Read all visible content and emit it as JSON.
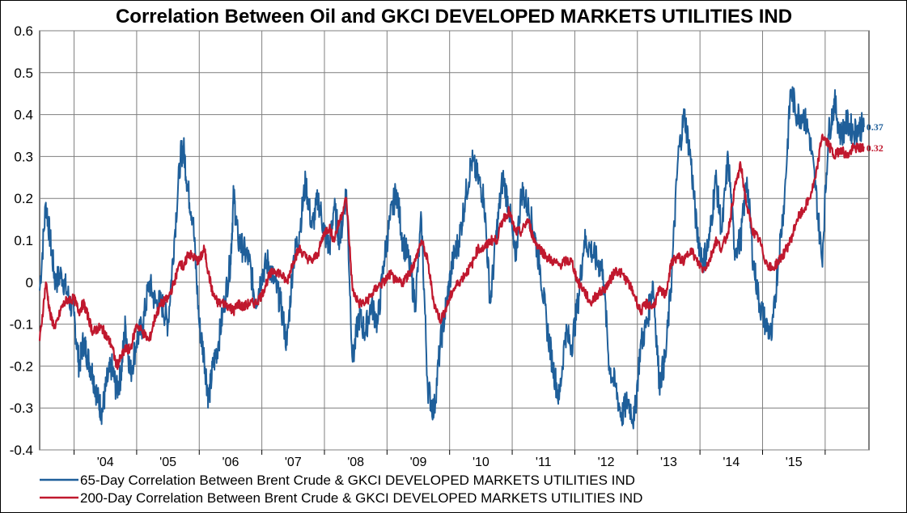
{
  "chart_data": {
    "type": "line",
    "title": "Correlation Between Oil and GKCI DEVELOPED MARKETS UTILITIES IND",
    "xlabel": "",
    "ylabel": "",
    "ylim": [
      -0.4,
      0.6
    ],
    "y_ticks": [
      "0.6",
      "0.5",
      "0.4",
      "0.3",
      "0.2",
      "0.1",
      "0",
      "-0.1",
      "-0.2",
      "-0.3",
      "-0.4"
    ],
    "x_ticks": [
      "'04",
      "'05",
      "'06",
      "'07",
      "'08",
      "'09",
      "'10",
      "'11",
      "'12",
      "'13",
      "'14",
      "'15"
    ],
    "grid": true,
    "legend_position": "bottom",
    "series": [
      {
        "name": "65-Day Correlation Between Brent Crude & GKCI DEVELOPED MARKETS UTILITIES IND",
        "color": "#1f5f9a",
        "end_label": "0.37",
        "x": [
          2003.45,
          2003.55,
          2003.62,
          2003.7,
          2003.8,
          2003.9,
          2004.0,
          2004.08,
          2004.15,
          2004.22,
          2004.3,
          2004.38,
          2004.45,
          2004.52,
          2004.6,
          2004.68,
          2004.75,
          2004.82,
          2004.9,
          2005.0,
          2005.1,
          2005.2,
          2005.3,
          2005.4,
          2005.5,
          2005.6,
          2005.7,
          2005.75,
          2005.82,
          2005.9,
          2006.0,
          2006.08,
          2006.15,
          2006.22,
          2006.3,
          2006.4,
          2006.5,
          2006.55,
          2006.62,
          2006.7,
          2006.8,
          2006.9,
          2007.0,
          2007.1,
          2007.2,
          2007.3,
          2007.4,
          2007.5,
          2007.6,
          2007.7,
          2007.8,
          2007.9,
          2008.0,
          2008.08,
          2008.15,
          2008.25,
          2008.35,
          2008.45,
          2008.55,
          2008.65,
          2008.75,
          2008.85,
          2008.95,
          2009.05,
          2009.15,
          2009.25,
          2009.35,
          2009.45,
          2009.55,
          2009.65,
          2009.75,
          2009.85,
          2009.95,
          2010.05,
          2010.15,
          2010.25,
          2010.35,
          2010.45,
          2010.55,
          2010.65,
          2010.75,
          2010.85,
          2010.95,
          2011.05,
          2011.15,
          2011.25,
          2011.35,
          2011.45,
          2011.55,
          2011.65,
          2011.75,
          2011.85,
          2011.95,
          2012.05,
          2012.15,
          2012.25,
          2012.35,
          2012.45,
          2012.55,
          2012.65,
          2012.75,
          2012.85,
          2012.95,
          2013.05,
          2013.15,
          2013.25,
          2013.35,
          2013.45,
          2013.55,
          2013.65,
          2013.75,
          2013.85,
          2013.95,
          2014.05,
          2014.15,
          2014.25,
          2014.35,
          2014.45,
          2014.55,
          2014.65,
          2014.75,
          2014.85,
          2014.95,
          2015.05,
          2015.15,
          2015.25,
          2015.35,
          2015.45,
          2015.55,
          2015.65,
          2015.75,
          2015.85,
          2015.95,
          2016.05,
          2016.15,
          2016.25,
          2016.35,
          2016.45,
          2016.55,
          2016.62
        ],
        "y": [
          -0.02,
          0.19,
          0.1,
          0.0,
          0.02,
          -0.03,
          -0.08,
          -0.2,
          -0.14,
          -0.18,
          -0.22,
          -0.28,
          -0.31,
          -0.24,
          -0.2,
          -0.26,
          -0.22,
          -0.1,
          -0.22,
          -0.14,
          -0.1,
          0.0,
          -0.05,
          -0.05,
          -0.1,
          0.1,
          0.3,
          0.32,
          0.22,
          0.15,
          -0.1,
          -0.18,
          -0.28,
          -0.2,
          -0.15,
          -0.05,
          0.05,
          0.21,
          0.1,
          0.08,
          0.05,
          -0.05,
          0.02,
          0.05,
          0.0,
          -0.05,
          -0.15,
          0.05,
          0.12,
          0.24,
          0.13,
          0.2,
          0.12,
          0.08,
          0.18,
          0.1,
          0.22,
          -0.19,
          -0.08,
          -0.12,
          -0.05,
          -0.1,
          0.05,
          0.15,
          0.22,
          0.1,
          0.05,
          -0.05,
          0.15,
          -0.25,
          -0.31,
          -0.15,
          -0.05,
          0.05,
          0.1,
          0.2,
          0.29,
          0.25,
          0.2,
          -0.05,
          0.12,
          0.25,
          0.18,
          0.05,
          0.22,
          0.18,
          0.12,
          0.03,
          -0.1,
          -0.2,
          -0.28,
          -0.12,
          -0.15,
          -0.05,
          0.1,
          0.08,
          0.05,
          0.03,
          -0.2,
          -0.25,
          -0.32,
          -0.28,
          -0.33,
          -0.15,
          -0.1,
          0.0,
          -0.24,
          -0.18,
          0.02,
          0.3,
          0.4,
          0.3,
          0.12,
          0.05,
          0.1,
          0.25,
          0.12,
          0.3,
          0.08,
          0.1,
          0.25,
          0.05,
          -0.05,
          -0.1,
          -0.13,
          0.05,
          0.2,
          0.46,
          0.4,
          0.4,
          0.35,
          0.22,
          0.05,
          0.35,
          0.43,
          0.35,
          0.38,
          0.36,
          0.37,
          0.37
        ],
        "last_value": 0.37
      },
      {
        "name": "200-Day Correlation Between Brent Crude & GKCI DEVELOPED MARKETS UTILITIES IND",
        "color": "#c0182e",
        "end_label": "0.32",
        "x": [
          2003.45,
          2003.55,
          2003.62,
          2003.7,
          2003.8,
          2003.9,
          2004.0,
          2004.08,
          2004.15,
          2004.22,
          2004.3,
          2004.38,
          2004.45,
          2004.52,
          2004.6,
          2004.68,
          2004.75,
          2004.82,
          2004.9,
          2005.0,
          2005.1,
          2005.2,
          2005.3,
          2005.4,
          2005.5,
          2005.6,
          2005.7,
          2005.75,
          2005.82,
          2005.9,
          2006.0,
          2006.08,
          2006.15,
          2006.22,
          2006.3,
          2006.4,
          2006.5,
          2006.55,
          2006.62,
          2006.7,
          2006.8,
          2006.9,
          2007.0,
          2007.1,
          2007.2,
          2007.3,
          2007.4,
          2007.5,
          2007.6,
          2007.7,
          2007.8,
          2007.9,
          2008.0,
          2008.08,
          2008.15,
          2008.25,
          2008.35,
          2008.45,
          2008.55,
          2008.65,
          2008.75,
          2008.85,
          2008.95,
          2009.05,
          2009.15,
          2009.25,
          2009.35,
          2009.45,
          2009.55,
          2009.65,
          2009.75,
          2009.85,
          2009.95,
          2010.05,
          2010.15,
          2010.25,
          2010.35,
          2010.45,
          2010.55,
          2010.65,
          2010.75,
          2010.85,
          2010.95,
          2011.05,
          2011.15,
          2011.25,
          2011.35,
          2011.45,
          2011.55,
          2011.65,
          2011.75,
          2011.85,
          2011.95,
          2012.05,
          2012.15,
          2012.25,
          2012.35,
          2012.45,
          2012.55,
          2012.65,
          2012.75,
          2012.85,
          2012.95,
          2013.05,
          2013.15,
          2013.25,
          2013.35,
          2013.45,
          2013.55,
          2013.65,
          2013.75,
          2013.85,
          2013.95,
          2014.05,
          2014.15,
          2014.25,
          2014.35,
          2014.45,
          2014.55,
          2014.65,
          2014.75,
          2014.85,
          2014.95,
          2015.05,
          2015.15,
          2015.25,
          2015.35,
          2015.45,
          2015.55,
          2015.65,
          2015.75,
          2015.85,
          2015.95,
          2016.05,
          2016.15,
          2016.25,
          2016.35,
          2016.45,
          2016.55,
          2016.62
        ],
        "y": [
          -0.14,
          0.0,
          -0.08,
          -0.11,
          -0.06,
          -0.04,
          -0.04,
          -0.07,
          -0.05,
          -0.08,
          -0.12,
          -0.11,
          -0.11,
          -0.13,
          -0.15,
          -0.2,
          -0.18,
          -0.16,
          -0.16,
          -0.1,
          -0.12,
          -0.14,
          -0.08,
          -0.05,
          -0.04,
          0.0,
          0.05,
          0.03,
          0.07,
          0.06,
          0.05,
          0.08,
          0.02,
          -0.03,
          -0.05,
          -0.05,
          -0.06,
          -0.07,
          -0.05,
          -0.06,
          -0.05,
          -0.05,
          -0.03,
          0.01,
          0.03,
          0.02,
          0.0,
          0.05,
          0.08,
          0.06,
          0.05,
          0.07,
          0.12,
          0.13,
          0.1,
          0.15,
          0.2,
          -0.02,
          -0.05,
          -0.05,
          -0.03,
          -0.01,
          0.0,
          0.02,
          0.0,
          0.0,
          0.02,
          0.05,
          0.1,
          0.05,
          -0.05,
          -0.09,
          -0.06,
          -0.02,
          0.0,
          0.02,
          0.04,
          0.08,
          0.08,
          0.1,
          0.1,
          0.15,
          0.17,
          0.12,
          0.12,
          0.15,
          0.1,
          0.08,
          0.06,
          0.05,
          0.04,
          0.05,
          0.05,
          0.0,
          -0.02,
          -0.05,
          -0.03,
          -0.02,
          0.0,
          0.03,
          0.02,
          0.0,
          -0.03,
          -0.07,
          -0.05,
          -0.06,
          -0.02,
          -0.03,
          0.05,
          0.06,
          0.05,
          0.08,
          0.05,
          0.03,
          0.05,
          0.1,
          0.08,
          0.12,
          0.22,
          0.28,
          0.18,
          0.12,
          0.1,
          0.05,
          0.03,
          0.05,
          0.07,
          0.1,
          0.15,
          0.17,
          0.2,
          0.25,
          0.35,
          0.33,
          0.3,
          0.32,
          0.3,
          0.32,
          0.32,
          0.32
        ],
        "last_value": 0.32
      }
    ]
  }
}
